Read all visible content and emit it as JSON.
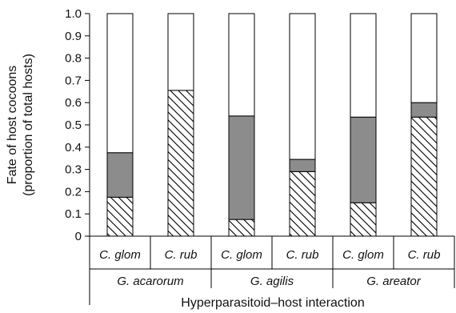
{
  "chart_data": {
    "type": "bar",
    "stacked": true,
    "title": "",
    "xlabel": "Hyperparasitoid–host interaction",
    "ylabel_line1": "Fate of host cocoons",
    "ylabel_line2": "(proportion of total hosts)",
    "ylim": [
      0,
      1.0
    ],
    "yticks": [
      "0",
      "0.1",
      "0.2",
      "0.3",
      "0.4",
      "0.5",
      "0.6",
      "0.7",
      "0.8",
      "0.9",
      "1.0"
    ],
    "ytick_values": [
      0,
      0.1,
      0.2,
      0.3,
      0.4,
      0.5,
      0.6,
      0.7,
      0.8,
      0.9,
      1.0
    ],
    "categories": [
      "C. glom",
      "C. rub",
      "C. glom",
      "C. rub",
      "C. glom",
      "C. rub"
    ],
    "groups": [
      {
        "label": "G. acarorum",
        "span": [
          0,
          1
        ]
      },
      {
        "label": "G. agilis",
        "span": [
          2,
          3
        ]
      },
      {
        "label": "G. areator",
        "span": [
          4,
          5
        ]
      }
    ],
    "series": [
      {
        "fill": "hatched",
        "values": [
          0.175,
          0.655,
          0.075,
          0.29,
          0.15,
          0.535
        ]
      },
      {
        "fill": "gray",
        "values": [
          0.2,
          0.0,
          0.465,
          0.055,
          0.385,
          0.065
        ]
      },
      {
        "fill": "white",
        "values": [
          0.625,
          0.345,
          0.46,
          0.655,
          0.465,
          0.4
        ]
      }
    ],
    "colors": {
      "gray": "#8c8c8c",
      "white": "#ffffff",
      "edge": "#000000"
    },
    "grid": false,
    "legend": "none"
  }
}
